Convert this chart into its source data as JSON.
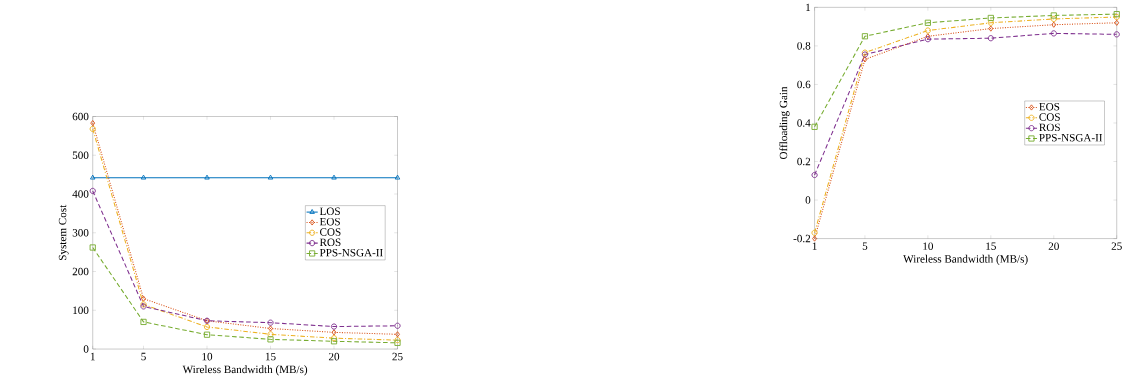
{
  "chart_data": [
    {
      "type": "line",
      "xlabel": "Wireless Bandwidth (MB/s)",
      "ylabel": "System Cost",
      "x": [
        1,
        5,
        10,
        15,
        20,
        25
      ],
      "xlim": [
        1,
        25
      ],
      "xticks": [
        1,
        5,
        10,
        15,
        20,
        25
      ],
      "ylim": [
        0,
        600
      ],
      "yticks": [
        0,
        100,
        200,
        300,
        400,
        500,
        600
      ],
      "grid": false,
      "legend": "right",
      "series": [
        {
          "name": "LOS",
          "color": "#0072bd",
          "marker": "triangle",
          "line_style": "solid",
          "values": [
            442,
            442,
            442,
            442,
            442,
            442
          ]
        },
        {
          "name": "EOS",
          "color": "#d95319",
          "marker": "diamond",
          "line_style": "dotted",
          "values": [
            583,
            130,
            73,
            53,
            43,
            38
          ]
        },
        {
          "name": "COS",
          "color": "#edb120",
          "marker": "circle",
          "line_style": "dashdot",
          "values": [
            568,
            115,
            57,
            38,
            28,
            23
          ]
        },
        {
          "name": "ROS",
          "color": "#7e2f8e",
          "marker": "circle",
          "line_style": "dashed",
          "values": [
            408,
            110,
            73,
            68,
            58,
            60
          ]
        },
        {
          "name": "PPS-NSGA-II",
          "color": "#77ac30",
          "marker": "square",
          "line_style": "dashed",
          "values": [
            262,
            70,
            37,
            25,
            20,
            16
          ]
        }
      ]
    },
    {
      "type": "line",
      "xlabel": "Wireless Bandwidth (MB/s)",
      "ylabel": "Offloading Gain",
      "x": [
        1,
        5,
        10,
        15,
        20,
        25
      ],
      "xlim": [
        1,
        25
      ],
      "xticks": [
        1,
        5,
        10,
        15,
        20,
        25
      ],
      "ylim": [
        -0.2,
        1
      ],
      "yticks": [
        -0.2,
        0,
        0.2,
        0.4,
        0.6,
        0.8,
        1
      ],
      "grid": false,
      "legend": "right",
      "series": [
        {
          "name": "EOS",
          "color": "#d95319",
          "marker": "diamond",
          "line_style": "dotted",
          "values": [
            -0.2,
            0.73,
            0.85,
            0.89,
            0.91,
            0.92
          ]
        },
        {
          "name": "COS",
          "color": "#edb120",
          "marker": "circle",
          "line_style": "dashdot",
          "values": [
            -0.17,
            0.765,
            0.88,
            0.92,
            0.94,
            0.95
          ]
        },
        {
          "name": "ROS",
          "color": "#7e2f8e",
          "marker": "circle",
          "line_style": "dashed",
          "values": [
            0.13,
            0.755,
            0.835,
            0.84,
            0.865,
            0.86
          ]
        },
        {
          "name": "PPS-NSGA-II",
          "color": "#77ac30",
          "marker": "square",
          "line_style": "dashed",
          "values": [
            0.38,
            0.85,
            0.92,
            0.945,
            0.958,
            0.965
          ]
        }
      ]
    }
  ]
}
